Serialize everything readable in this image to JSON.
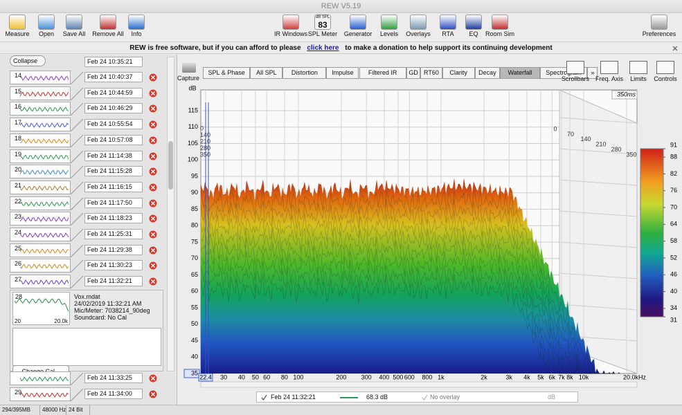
{
  "window": {
    "title": "REW V5.19"
  },
  "toolbar": {
    "left": [
      "Measure",
      "Open",
      "Save All",
      "Remove All",
      "Info"
    ],
    "center": [
      "IR Windows",
      "SPL Meter",
      "Generator",
      "Levels",
      "Overlays",
      "RTA",
      "EQ",
      "Room Sim"
    ],
    "right": "Preferences",
    "spl_meter": {
      "unit": "dB SPL",
      "reading": 83
    }
  },
  "banner": {
    "before": "REW is free software, but if you can afford to please",
    "link": "click here",
    "after": "to make a donation to help support its continuing development"
  },
  "measurements": {
    "collapse": "Collapse",
    "first_date": "Feb 24 10:35:21",
    "items": [
      {
        "number": 14,
        "date": "Feb 24 10:40:37"
      },
      {
        "number": 15,
        "date": "Feb 24 10:44:59"
      },
      {
        "number": 16,
        "date": "Feb 24 10:46:29"
      },
      {
        "number": 17,
        "date": "Feb 24 10:55:54"
      },
      {
        "number": 18,
        "date": "Feb 24 10:57:08"
      },
      {
        "number": 19,
        "date": "Feb 24 11:14:38"
      },
      {
        "number": 20,
        "date": "Feb 24 11:15:28"
      },
      {
        "number": 21,
        "date": "Feb 24 11:16:15"
      },
      {
        "number": 22,
        "date": "Feb 24 11:17:50"
      },
      {
        "number": 23,
        "date": "Feb 24 11:18:23"
      },
      {
        "number": 24,
        "date": "Feb 24 11:25:31"
      },
      {
        "number": 25,
        "date": "Feb 24 11:29:38"
      },
      {
        "number": 26,
        "date": "Feb 24 11:30:23"
      },
      {
        "number": 27,
        "date": "Feb 24 11:32:21"
      }
    ],
    "selected": {
      "number": 28,
      "file": "Vox.mdat",
      "datetime": "24/02/2019 11:32:21 AM",
      "mic": "Mic/Meter: 7038214_90deg",
      "soundcard": "Soundcard: No Cal",
      "axis_min": 20,
      "axis_max": "20.0k",
      "button": "Change Cal..."
    },
    "items_after": [
      {
        "date": "Feb 24 11:33:25"
      },
      {
        "number": 29,
        "date": "Feb 24 11:34:00"
      }
    ]
  },
  "graph": {
    "capture": "Capture",
    "tabs": [
      "SPL & Phase",
      "All SPL",
      "Distortion",
      "Impulse",
      "Filtered IR",
      "GD",
      "RT60",
      "Clarity",
      "Decay",
      "Waterfall",
      "Spectrogram",
      "»"
    ],
    "active_tab": "Waterfall",
    "tools": [
      "Scrollbars",
      "Freq. Axis",
      "Limits",
      "Controls"
    ],
    "y_unit": "dB",
    "yticks": [
      115,
      110,
      105,
      100,
      95,
      90,
      85,
      80,
      75,
      70,
      65,
      60,
      55,
      50,
      45,
      40,
      35
    ],
    "xticks": [
      22.4,
      30,
      40,
      50,
      60,
      80,
      100,
      200,
      300,
      400,
      500,
      600,
      800,
      {
        "value": 1000,
        "label": "1k"
      },
      {
        "value": 2000,
        "label": "2k"
      },
      {
        "value": 3000,
        "label": "3k"
      },
      {
        "value": 4000,
        "label": "4k"
      },
      {
        "value": 5000,
        "label": "5k"
      },
      {
        "value": 6000,
        "label": "6k"
      },
      {
        "value": 7000,
        "label": "7k"
      },
      {
        "value": 8000,
        "label": "8k"
      },
      {
        "value": 10000,
        "label": "10k"
      },
      {
        "value": 20000,
        "label": "20.0kHz"
      }
    ],
    "time_label": "350ms",
    "time_ticks": [
      0,
      70,
      140,
      210,
      280,
      350
    ],
    "color_scale": [
      91,
      88,
      82,
      76,
      70,
      64,
      58,
      52,
      46,
      40,
      34,
      31
    ]
  },
  "legend": {
    "name": "Feb 24 11:32:21",
    "value": "68.3 dB",
    "overlay": "No overlay",
    "unit": "dB"
  },
  "status": [
    "294/395MB",
    "48000 Hz",
    "24 Bit"
  ]
}
